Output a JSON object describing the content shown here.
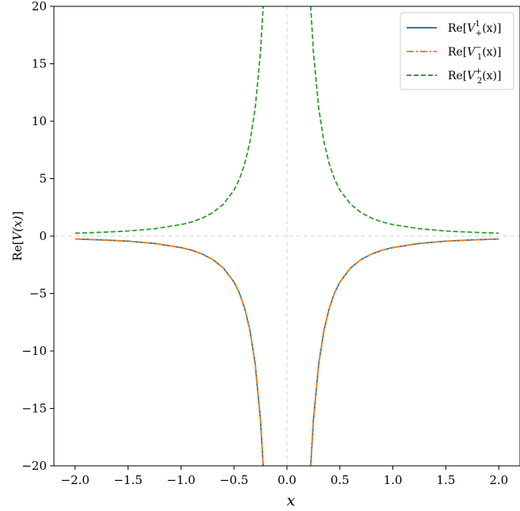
{
  "chart_data": {
    "type": "line",
    "xlabel": "x",
    "ylabel": "Re[V(x)]",
    "xlim": [
      -2.2,
      2.2
    ],
    "ylim": [
      -20,
      20
    ],
    "xticks": [
      -2.0,
      -1.5,
      -1.0,
      -0.5,
      0.0,
      0.5,
      1.0,
      1.5,
      2.0
    ],
    "xtick_labels": [
      "−2.0",
      "−1.5",
      "−1.0",
      "−0.5",
      "0.0",
      "0.5",
      "1.0",
      "1.5",
      "2.0"
    ],
    "yticks": [
      -20,
      -15,
      -10,
      -5,
      0,
      5,
      10,
      15,
      20
    ],
    "ytick_labels": [
      "−20",
      "−15",
      "−10",
      "−5",
      "0",
      "5",
      "10",
      "15",
      "20"
    ],
    "reference_lines": {
      "x": 0,
      "y": 0,
      "style": "dashed",
      "color": "#d3d3d3"
    },
    "grid": false,
    "legend_position": "top-right",
    "series": [
      {
        "name": "Re[V₊¹(x)]",
        "color": "#1f77b4",
        "linestyle": "solid",
        "x": [
          -2.0,
          -1.75,
          -1.5,
          -1.25,
          -1.0,
          -0.9,
          -0.8,
          -0.7,
          -0.6,
          -0.5,
          -0.45,
          -0.4,
          -0.35,
          -0.3,
          -0.25,
          -0.22,
          -0.2,
          0.2,
          0.22,
          0.25,
          0.3,
          0.35,
          0.4,
          0.45,
          0.5,
          0.6,
          0.7,
          0.8,
          0.9,
          1.0,
          1.25,
          1.5,
          1.75,
          2.0
        ],
        "y": [
          -0.25,
          -0.33,
          -0.44,
          -0.64,
          -1.0,
          -1.23,
          -1.56,
          -2.04,
          -2.78,
          -4.0,
          -4.94,
          -6.25,
          -8.16,
          -11.11,
          -16.0,
          -20.66,
          -25.0,
          -25.0,
          -20.66,
          -16.0,
          -11.11,
          -8.16,
          -6.25,
          -4.94,
          -4.0,
          -2.78,
          -2.04,
          -1.56,
          -1.23,
          -1.0,
          -0.64,
          -0.44,
          -0.33,
          -0.25
        ]
      },
      {
        "name": "Re[V₁⁻(x)]",
        "color": "#ff7f0e",
        "linestyle": "dashdot",
        "x": [
          -2.0,
          -1.75,
          -1.5,
          -1.25,
          -1.0,
          -0.9,
          -0.8,
          -0.7,
          -0.6,
          -0.5,
          -0.45,
          -0.4,
          -0.35,
          -0.3,
          -0.25,
          -0.22,
          -0.2,
          0.2,
          0.22,
          0.25,
          0.3,
          0.35,
          0.4,
          0.45,
          0.5,
          0.6,
          0.7,
          0.8,
          0.9,
          1.0,
          1.25,
          1.5,
          1.75,
          2.0
        ],
        "y": [
          -0.25,
          -0.33,
          -0.44,
          -0.64,
          -1.0,
          -1.23,
          -1.56,
          -2.04,
          -2.78,
          -4.0,
          -4.94,
          -6.25,
          -8.16,
          -11.11,
          -16.0,
          -20.66,
          -25.0,
          -25.0,
          -20.66,
          -16.0,
          -11.11,
          -8.16,
          -6.25,
          -4.94,
          -4.0,
          -2.78,
          -2.04,
          -1.56,
          -1.23,
          -1.0,
          -0.64,
          -0.44,
          -0.33,
          -0.25
        ]
      },
      {
        "name": "Re[V₂⁺(x)]",
        "color": "#2ca02c",
        "linestyle": "dashed",
        "x": [
          -2.0,
          -1.75,
          -1.5,
          -1.25,
          -1.0,
          -0.9,
          -0.8,
          -0.7,
          -0.6,
          -0.5,
          -0.45,
          -0.4,
          -0.35,
          -0.3,
          -0.25,
          -0.22,
          -0.2,
          0.2,
          0.22,
          0.25,
          0.3,
          0.35,
          0.4,
          0.45,
          0.5,
          0.6,
          0.7,
          0.8,
          0.9,
          1.0,
          1.25,
          1.5,
          1.75,
          2.0
        ],
        "y": [
          0.25,
          0.33,
          0.44,
          0.64,
          1.0,
          1.23,
          1.56,
          2.04,
          2.78,
          4.0,
          4.94,
          6.25,
          8.16,
          11.11,
          16.0,
          20.66,
          25.0,
          25.0,
          20.66,
          16.0,
          11.11,
          8.16,
          6.25,
          4.94,
          4.0,
          2.78,
          2.04,
          1.56,
          1.23,
          1.0,
          0.64,
          0.44,
          0.33,
          0.25
        ]
      }
    ],
    "legend": [
      {
        "prefix": "Re[",
        "base": "V",
        "sup": "1",
        "sub": "+",
        "suffix": "(x)]"
      },
      {
        "prefix": "Re[",
        "base": "V",
        "sup": "−",
        "sub": "1",
        "suffix": "(x)]"
      },
      {
        "prefix": "Re[",
        "base": "V",
        "sup": "+",
        "sub": "2",
        "suffix": "(x)]"
      }
    ],
    "ylabel_parts": {
      "prefix": "Re[",
      "base": "V(x)",
      "suffix": "]"
    }
  }
}
